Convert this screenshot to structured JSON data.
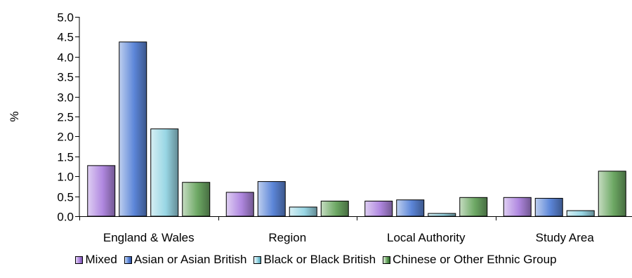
{
  "chart_data": {
    "type": "bar",
    "title": "",
    "xlabel": "",
    "ylabel": "%",
    "ylim": [
      0,
      5.0
    ],
    "yticks": [
      "0.0",
      "0.5",
      "1.0",
      "1.5",
      "2.0",
      "2.5",
      "3.0",
      "3.5",
      "4.0",
      "4.5",
      "5.0"
    ],
    "categories": [
      "England & Wales",
      "Region",
      "Local Authority",
      "Study Area"
    ],
    "series": [
      {
        "name": "Mixed",
        "values": [
          1.27,
          0.6,
          0.38,
          0.47
        ],
        "color": "#b088e0"
      },
      {
        "name": "Asian or Asian British",
        "values": [
          4.37,
          0.87,
          0.41,
          0.45
        ],
        "color": "#5c86d8"
      },
      {
        "name": "Black or Black British",
        "values": [
          2.19,
          0.23,
          0.07,
          0.14
        ],
        "color": "#98d6e4"
      },
      {
        "name": "Chinese or Other Ethnic Group",
        "values": [
          0.85,
          0.38,
          0.47,
          1.13
        ],
        "color": "#6da864"
      }
    ],
    "grid": false,
    "legend_position": "bottom"
  }
}
